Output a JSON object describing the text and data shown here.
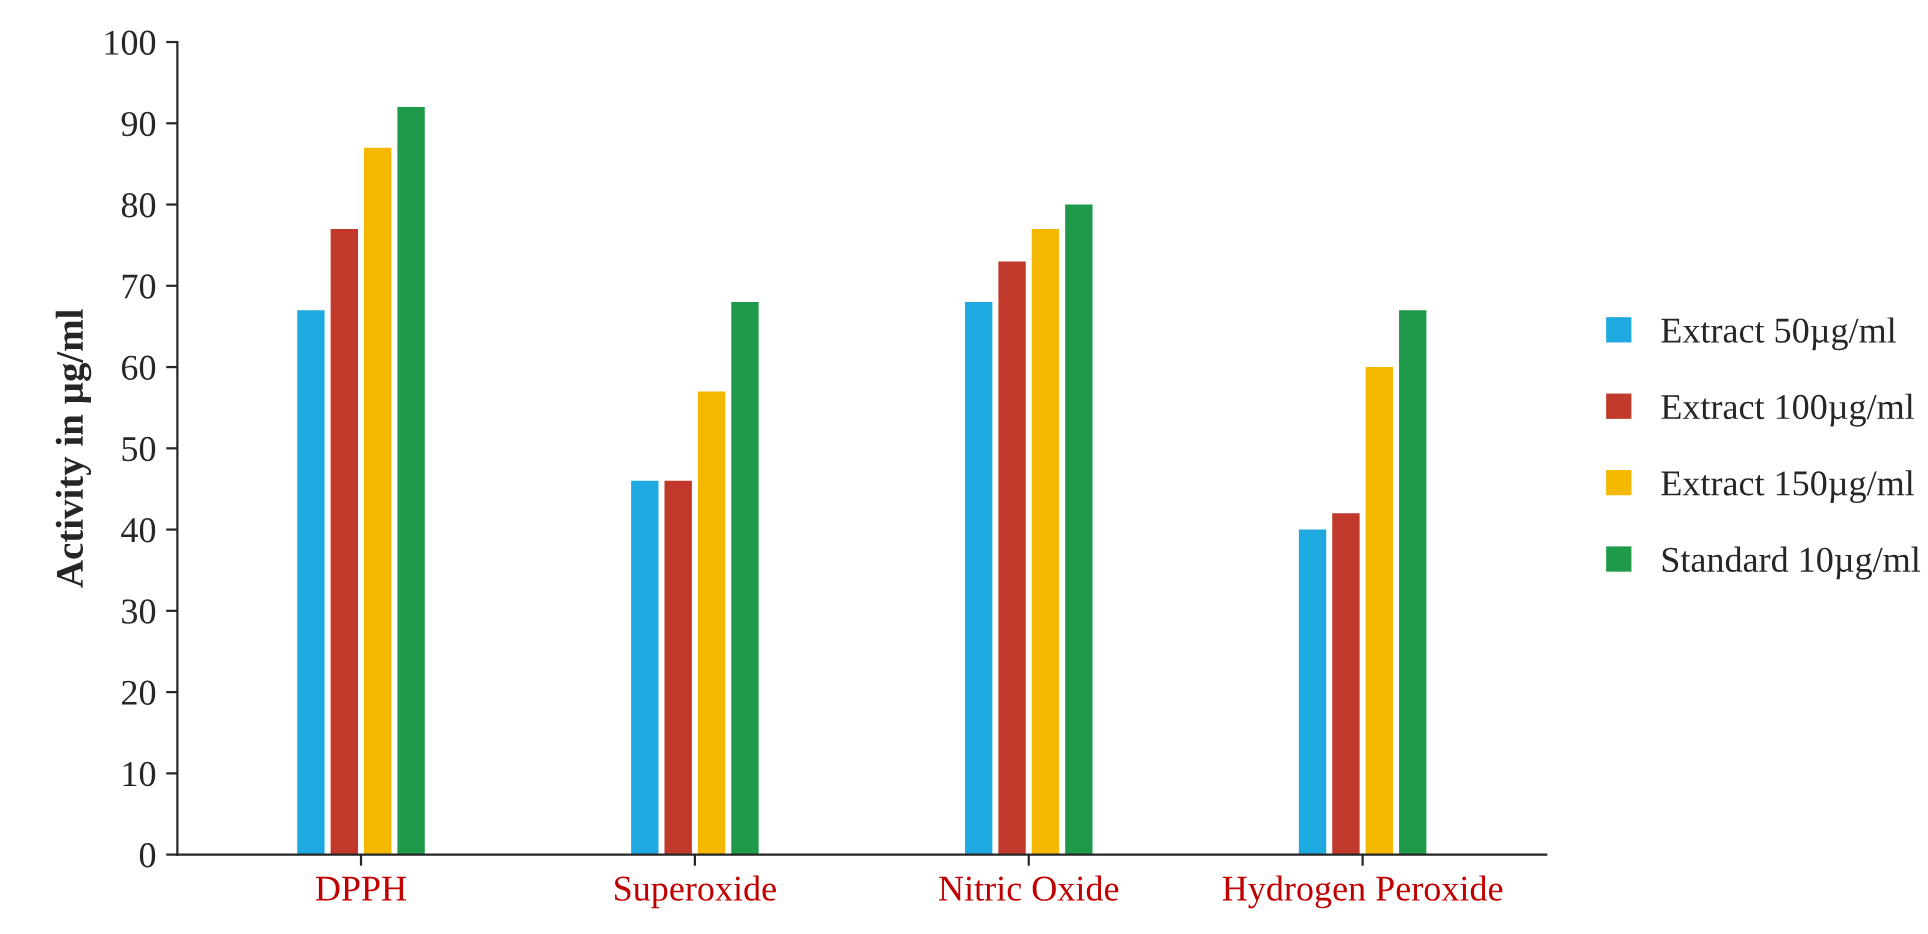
{
  "chart_data": {
    "type": "bar",
    "ylabel": "Activity in µg/ml",
    "categories": [
      "DPPH",
      "Superoxide",
      "Nitric Oxide",
      "Hydrogen Peroxide"
    ],
    "series": [
      {
        "name": "Extract 50µg/ml",
        "color": "#1fa9e1",
        "values": [
          67,
          46,
          68,
          40
        ]
      },
      {
        "name": "Extract 100µg/ml",
        "color": "#c0392b",
        "values": [
          77,
          46,
          73,
          42
        ]
      },
      {
        "name": "Extract 150µg/ml",
        "color": "#f5b800",
        "values": [
          87,
          57,
          77,
          60
        ]
      },
      {
        "name": "Standard 10µg/ml",
        "color": "#1e9a4a",
        "values": [
          92,
          68,
          80,
          67
        ]
      }
    ],
    "ylim": [
      0,
      100
    ],
    "yticks": [
      0,
      10,
      20,
      30,
      40,
      50,
      60,
      70,
      80,
      90,
      100
    ],
    "grid": false,
    "legend": "right"
  }
}
